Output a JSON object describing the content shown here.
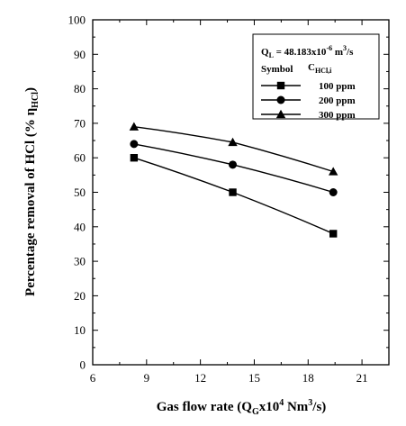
{
  "chart_data": {
    "type": "line",
    "title": "",
    "xlabel": {
      "main": "Gas flow rate (Q",
      "sub": "G",
      "mid": "x10",
      "sup": "4",
      "unit1": " Nm",
      "sup2": "3",
      "unit2": "/s)"
    },
    "ylabel": {
      "main": "Percentage removal of HCl  (% η",
      "sub": "HCl",
      "end": ")"
    },
    "xlim": [
      6,
      22.5
    ],
    "ylim": [
      0,
      100
    ],
    "xticks": [
      6,
      9,
      12,
      15,
      18,
      21
    ],
    "yticks": [
      0,
      10,
      20,
      30,
      40,
      50,
      60,
      70,
      80,
      90,
      100
    ],
    "grid": false,
    "legend_position": "top-right",
    "legend": {
      "condition": {
        "prefix": "Q",
        "sub": "L",
        "eq": " = 48.183x10",
        "sup": "-6",
        "unit": " m",
        "sup2": "3",
        "tail": "/s"
      },
      "symbol_header": "Symbol",
      "conc_header": "C",
      "conc_sub": "HCl,i"
    },
    "series": [
      {
        "name": "100 ppm",
        "marker": "square",
        "x": [
          8.3,
          13.8,
          19.4
        ],
        "y": [
          60,
          50,
          38
        ]
      },
      {
        "name": "200 ppm",
        "marker": "circle",
        "x": [
          8.3,
          13.8,
          19.4
        ],
        "y": [
          64,
          58,
          50
        ]
      },
      {
        "name": "300 ppm",
        "marker": "triangle",
        "x": [
          8.3,
          13.8,
          19.4
        ],
        "y": [
          69,
          64.5,
          56
        ]
      }
    ]
  }
}
